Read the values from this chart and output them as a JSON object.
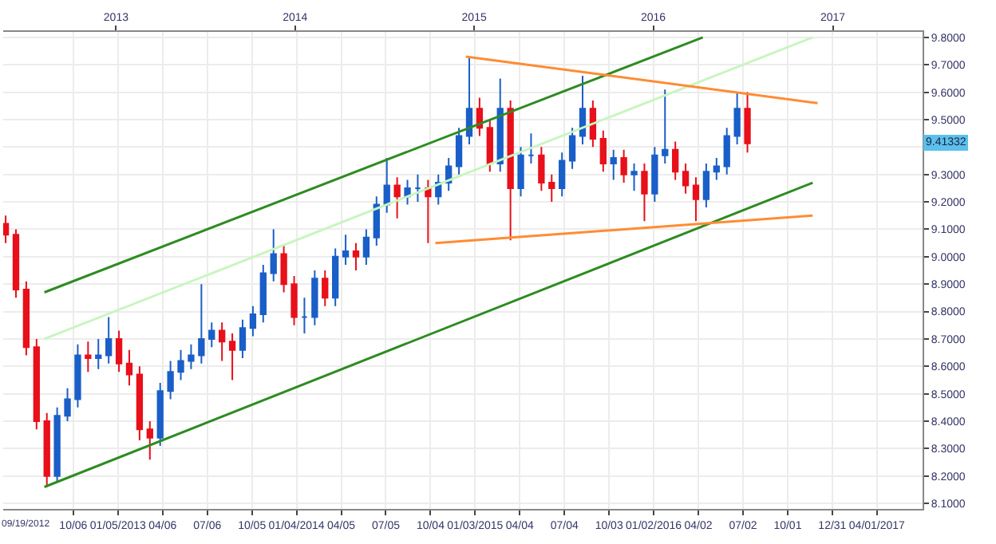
{
  "chart_data": {
    "type": "candlestick",
    "x": [
      "2012-05-21",
      "2012-06-11",
      "2012-07-02",
      "2012-07-23",
      "2012-08-13",
      "2012-09-03",
      "2012-09-24",
      "2012-10-15",
      "2012-11-05",
      "2012-11-26",
      "2012-12-17",
      "2013-01-07",
      "2013-01-28",
      "2013-02-18",
      "2013-03-11",
      "2013-04-01",
      "2013-04-22",
      "2013-05-13",
      "2013-06-03",
      "2013-06-24",
      "2013-07-15",
      "2013-08-05",
      "2013-08-26",
      "2013-09-16",
      "2013-10-07",
      "2013-10-28",
      "2013-11-18",
      "2013-12-09",
      "2013-12-30",
      "2014-01-20",
      "2014-02-10",
      "2014-03-03",
      "2014-03-24",
      "2014-04-14",
      "2014-05-05",
      "2014-05-26",
      "2014-06-16",
      "2014-07-07",
      "2014-07-28",
      "2014-08-18",
      "2014-09-08",
      "2014-09-29",
      "2014-10-20",
      "2014-11-10",
      "2014-12-01",
      "2014-12-22",
      "2015-01-12",
      "2015-02-02",
      "2015-02-23",
      "2015-03-16",
      "2015-04-06",
      "2015-04-27",
      "2015-05-18",
      "2015-06-08",
      "2015-06-29",
      "2015-07-20",
      "2015-08-10",
      "2015-08-31",
      "2015-09-21",
      "2015-10-12",
      "2015-11-02",
      "2015-11-23",
      "2015-12-14",
      "2016-01-04",
      "2016-01-25",
      "2016-02-15",
      "2016-03-07",
      "2016-03-28",
      "2016-04-18",
      "2016-05-09",
      "2016-05-30",
      "2016-06-20",
      "2016-07-11"
    ],
    "ohlc": [
      [
        9.12,
        9.15,
        9.05,
        9.08
      ],
      [
        9.08,
        9.1,
        8.85,
        8.88
      ],
      [
        8.88,
        8.91,
        8.64,
        8.67
      ],
      [
        8.67,
        8.7,
        8.37,
        8.4
      ],
      [
        8.4,
        8.43,
        8.16,
        8.2
      ],
      [
        8.2,
        8.45,
        8.18,
        8.42
      ],
      [
        8.42,
        8.52,
        8.4,
        8.48
      ],
      [
        8.48,
        8.68,
        8.45,
        8.64
      ],
      [
        8.64,
        8.69,
        8.58,
        8.63
      ],
      [
        8.63,
        8.7,
        8.59,
        8.64
      ],
      [
        8.64,
        8.78,
        8.61,
        8.7
      ],
      [
        8.7,
        8.73,
        8.58,
        8.61
      ],
      [
        8.61,
        8.66,
        8.53,
        8.57
      ],
      [
        8.57,
        8.6,
        8.33,
        8.37
      ],
      [
        8.37,
        8.4,
        8.26,
        8.34
      ],
      [
        8.34,
        8.54,
        8.31,
        8.51
      ],
      [
        8.51,
        8.62,
        8.48,
        8.58
      ],
      [
        8.58,
        8.66,
        8.55,
        8.62
      ],
      [
        8.62,
        8.68,
        8.59,
        8.64
      ],
      [
        8.64,
        8.9,
        8.61,
        8.7
      ],
      [
        8.7,
        8.76,
        8.67,
        8.73
      ],
      [
        8.73,
        8.76,
        8.62,
        8.69
      ],
      [
        8.69,
        8.72,
        8.55,
        8.66
      ],
      [
        8.66,
        8.77,
        8.63,
        8.74
      ],
      [
        8.74,
        8.82,
        8.71,
        8.79
      ],
      [
        8.79,
        8.97,
        8.76,
        8.94
      ],
      [
        8.94,
        9.1,
        8.91,
        9.01
      ],
      [
        9.01,
        9.04,
        8.87,
        8.9
      ],
      [
        8.9,
        8.93,
        8.75,
        8.78
      ],
      [
        8.78,
        8.85,
        8.72,
        8.78
      ],
      [
        8.78,
        8.95,
        8.75,
        8.92
      ],
      [
        8.92,
        8.95,
        8.82,
        8.85
      ],
      [
        8.85,
        9.03,
        8.82,
        9.0
      ],
      [
        9.0,
        9.08,
        8.97,
        9.02
      ],
      [
        9.02,
        9.05,
        8.95,
        9.0
      ],
      [
        9.0,
        9.1,
        8.97,
        9.07
      ],
      [
        9.07,
        9.22,
        9.04,
        9.19
      ],
      [
        9.19,
        9.36,
        9.16,
        9.26
      ],
      [
        9.26,
        9.29,
        9.14,
        9.22
      ],
      [
        9.22,
        9.28,
        9.19,
        9.25
      ],
      [
        9.25,
        9.3,
        9.2,
        9.25
      ],
      [
        9.25,
        9.28,
        9.05,
        9.22
      ],
      [
        9.22,
        9.3,
        9.19,
        9.27
      ],
      [
        9.27,
        9.36,
        9.24,
        9.33
      ],
      [
        9.33,
        9.47,
        9.3,
        9.44
      ],
      [
        9.44,
        9.73,
        9.41,
        9.54
      ],
      [
        9.54,
        9.58,
        9.44,
        9.47
      ],
      [
        9.47,
        9.5,
        9.31,
        9.34
      ],
      [
        9.34,
        9.65,
        9.31,
        9.54
      ],
      [
        9.54,
        9.57,
        9.06,
        9.25
      ],
      [
        9.25,
        9.4,
        9.22,
        9.37
      ],
      [
        9.37,
        9.45,
        9.34,
        9.37
      ],
      [
        9.37,
        9.4,
        9.24,
        9.27
      ],
      [
        9.27,
        9.3,
        9.2,
        9.25
      ],
      [
        9.25,
        9.38,
        9.22,
        9.35
      ],
      [
        9.35,
        9.47,
        9.32,
        9.44
      ],
      [
        9.44,
        9.66,
        9.41,
        9.54
      ],
      [
        9.54,
        9.57,
        9.4,
        9.43
      ],
      [
        9.43,
        9.46,
        9.31,
        9.34
      ],
      [
        9.34,
        9.39,
        9.28,
        9.36
      ],
      [
        9.36,
        9.39,
        9.27,
        9.3
      ],
      [
        9.3,
        9.34,
        9.24,
        9.31
      ],
      [
        9.31,
        9.34,
        9.13,
        9.23
      ],
      [
        9.23,
        9.4,
        9.2,
        9.37
      ],
      [
        9.37,
        9.61,
        9.34,
        9.39
      ],
      [
        9.39,
        9.42,
        9.28,
        9.31
      ],
      [
        9.31,
        9.34,
        9.23,
        9.26
      ],
      [
        9.26,
        9.29,
        9.13,
        9.21
      ],
      [
        9.21,
        9.34,
        9.18,
        9.31
      ],
      [
        9.31,
        9.36,
        9.28,
        9.33
      ],
      [
        9.33,
        9.47,
        9.3,
        9.44
      ],
      [
        9.44,
        9.6,
        9.41,
        9.54
      ],
      [
        9.54,
        9.6,
        9.38,
        9.41332
      ]
    ],
    "colors": [
      "#e8101a",
      "#e8101a",
      "#e8101a",
      "#e8101a",
      "#e8101a",
      "#1a5fc8",
      "#1a5fc8",
      "#1a5fc8",
      "#e8101a",
      "#1a5fc8",
      "#1a5fc8",
      "#e8101a",
      "#e8101a",
      "#e8101a",
      "#e8101a",
      "#1a5fc8",
      "#1a5fc8",
      "#1a5fc8",
      "#1a5fc8",
      "#1a5fc8",
      "#1a5fc8",
      "#e8101a",
      "#e8101a",
      "#1a5fc8",
      "#1a5fc8",
      "#1a5fc8",
      "#1a5fc8",
      "#e8101a",
      "#e8101a",
      "#1a5fc8",
      "#1a5fc8",
      "#e8101a",
      "#1a5fc8",
      "#1a5fc8",
      "#e8101a",
      "#1a5fc8",
      "#1a5fc8",
      "#1a5fc8",
      "#e8101a",
      "#1a5fc8",
      "#1a5fc8",
      "#e8101a",
      "#1a5fc8",
      "#1a5fc8",
      "#1a5fc8",
      "#1a5fc8",
      "#e8101a",
      "#e8101a",
      "#1a5fc8",
      "#e8101a",
      "#1a5fc8",
      "#1a5fc8",
      "#e8101a",
      "#e8101a",
      "#1a5fc8",
      "#1a5fc8",
      "#1a5fc8",
      "#e8101a",
      "#e8101a",
      "#1a5fc8",
      "#e8101a",
      "#1a5fc8",
      "#e8101a",
      "#1a5fc8",
      "#1a5fc8",
      "#e8101a",
      "#e8101a",
      "#e8101a",
      "#1a5fc8",
      "#1a5fc8",
      "#1a5fc8",
      "#1a5fc8",
      "#e8101a"
    ],
    "series": [
      {
        "type": "line",
        "color": "#2e8b22",
        "x": [
          "2012-08-08",
          "2016-11-21"
        ],
        "values": [
          8.16,
          9.27
        ]
      },
      {
        "type": "line",
        "color": "#2e8b22",
        "x": [
          "2012-08-08",
          "2016-04-11"
        ],
        "values": [
          8.87,
          9.8
        ]
      },
      {
        "type": "line",
        "color": "#c8f5c0",
        "x": [
          "2012-08-08",
          "2016-11-21"
        ],
        "values": [
          8.7,
          9.8
        ]
      },
      {
        "type": "line",
        "color": "#ff8c33",
        "x": [
          "2014-12-15",
          "2016-12-01"
        ],
        "values": [
          9.73,
          9.56
        ]
      },
      {
        "type": "line",
        "color": "#ff8c33",
        "x": [
          "2014-10-14",
          "2016-11-21"
        ],
        "values": [
          9.05,
          9.15
        ]
      }
    ],
    "xlim": [
      "2012-05-16",
      "2017-07-03"
    ],
    "xticks": [
      {
        "value": "2012-10-06",
        "label": "10/06"
      },
      {
        "value": "2013-01-05",
        "label": "01/05/2013"
      },
      {
        "value": "2013-04-06",
        "label": "04/06"
      },
      {
        "value": "2013-07-06",
        "label": "07/06"
      },
      {
        "value": "2013-10-05",
        "label": "10/05"
      },
      {
        "value": "2014-01-04",
        "label": "01/04/2014"
      },
      {
        "value": "2014-04-05",
        "label": "04/05"
      },
      {
        "value": "2014-07-05",
        "label": "07/05"
      },
      {
        "value": "2014-10-04",
        "label": "10/04"
      },
      {
        "value": "2015-01-03",
        "label": "01/03/2015"
      },
      {
        "value": "2015-04-04",
        "label": "04/04"
      },
      {
        "value": "2015-07-04",
        "label": "07/04"
      },
      {
        "value": "2015-10-03",
        "label": "10/03"
      },
      {
        "value": "2016-01-02",
        "label": "01/02/2016"
      },
      {
        "value": "2016-04-02",
        "label": "04/02"
      },
      {
        "value": "2016-07-02",
        "label": "07/02"
      },
      {
        "value": "2016-10-01",
        "label": "10/01"
      },
      {
        "value": "2016-12-31",
        "label": "12/31"
      },
      {
        "value": "2017-04-01",
        "label": "04/01/2017"
      }
    ],
    "x2lim": [
      "2012-05-16",
      "2017-07-03"
    ],
    "x2ticks": [
      {
        "value": "2013-01-01",
        "label": "2013"
      },
      {
        "value": "2014-01-01",
        "label": "2014"
      },
      {
        "value": "2015-01-01",
        "label": "2015"
      },
      {
        "value": "2016-01-01",
        "label": "2016"
      },
      {
        "value": "2017-01-01",
        "label": "2017"
      }
    ],
    "ylim": [
      8.08,
      9.82
    ],
    "yticks": [
      {
        "value": 8.1,
        "label": "8.1000"
      },
      {
        "value": 8.2,
        "label": "8.2000"
      },
      {
        "value": 8.3,
        "label": "8.3000"
      },
      {
        "value": 8.4,
        "label": "8.4000"
      },
      {
        "value": 8.5,
        "label": "8.5000"
      },
      {
        "value": 8.6,
        "label": "8.6000"
      },
      {
        "value": 8.7,
        "label": "8.7000"
      },
      {
        "value": 8.8,
        "label": "8.8000"
      },
      {
        "value": 8.9,
        "label": "8.9000"
      },
      {
        "value": 9.0,
        "label": "9.0000"
      },
      {
        "value": 9.1,
        "label": "9.1000"
      },
      {
        "value": 9.2,
        "label": "9.2000"
      },
      {
        "value": 9.3,
        "label": "9.3000"
      },
      {
        "value": 9.4,
        "label": null
      },
      {
        "value": 9.5,
        "label": "9.5000"
      },
      {
        "value": 9.6,
        "label": "9.6000"
      },
      {
        "value": 9.7,
        "label": "9.7000"
      },
      {
        "value": 9.8,
        "label": "9.8000"
      }
    ],
    "annotations": [
      "09/19/2012",
      {
        "text": "9.41332",
        "y": 9.41332
      }
    ],
    "grid": true
  }
}
